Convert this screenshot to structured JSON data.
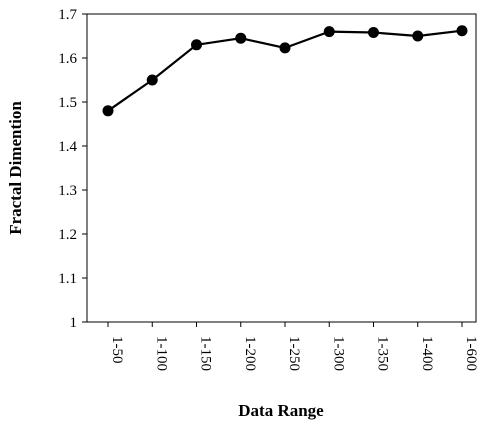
{
  "chart_data": {
    "type": "line",
    "title": "",
    "xlabel": "Data Range",
    "ylabel": "Fractal Dimention",
    "categories": [
      "1-50",
      "1-100",
      "1-150",
      "1-200",
      "1-250",
      "1-300",
      "1-350",
      "1-400",
      "1-600"
    ],
    "yticks": [
      "1",
      "1.1",
      "1.2",
      "1.3",
      "1.4",
      "1.5",
      "1.6",
      "1.7"
    ],
    "ylim": [
      1.0,
      1.7
    ],
    "grid": false,
    "legend": "none",
    "series": [
      {
        "values": [
          1.48,
          1.55,
          1.63,
          1.645,
          1.623,
          1.66,
          1.658,
          1.65,
          1.662
        ]
      }
    ],
    "colors": {
      "line": "#000000",
      "marker": "#000000",
      "axis": "#000000"
    }
  }
}
